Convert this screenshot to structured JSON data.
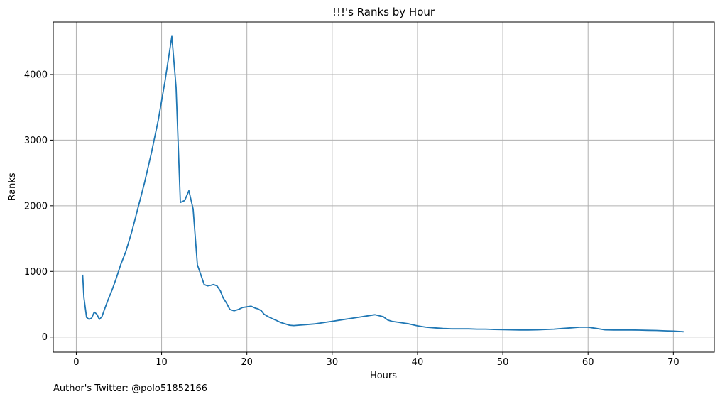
{
  "chart_data": {
    "type": "line",
    "title": "!!!'s Ranks by Hour",
    "xlabel": "Hours",
    "ylabel": "Ranks",
    "footer": "Author's Twitter: @polo51852166",
    "xlim": [
      -2.7,
      74.8
    ],
    "ylim": [
      -230,
      4800
    ],
    "xticks": [
      0,
      10,
      20,
      30,
      40,
      50,
      60,
      70
    ],
    "yticks": [
      0,
      1000,
      2000,
      3000,
      4000
    ],
    "grid": true,
    "line_color": "#1f77b4",
    "series": [
      {
        "x": [
          0.75,
          0.9,
          1.2,
          1.5,
          1.8,
          2.1,
          2.4,
          2.7,
          3.0,
          3.3,
          3.7,
          4.2,
          4.7,
          5.2,
          5.8,
          6.5,
          7.2,
          8.0,
          8.8,
          9.6,
          10.4,
          11.2,
          11.7,
          12.2,
          12.7,
          13.2,
          13.7,
          14.2,
          14.6,
          15.0,
          15.4,
          15.8,
          16.1,
          16.5,
          16.9,
          17.2,
          17.6,
          18.0,
          18.5,
          19.0,
          19.5,
          20.0,
          20.5,
          21.0,
          21.3,
          21.7,
          22.0,
          22.5,
          23.0,
          23.5,
          24.0,
          24.5,
          25.0,
          25.5,
          26.0,
          27.0,
          28.0,
          29.0,
          30.0,
          31.0,
          32.0,
          33.0,
          34.0,
          34.5,
          35.0,
          36.0,
          36.5,
          37.0,
          38.0,
          39.0,
          40.0,
          41.0,
          42.0,
          43.0,
          44.0,
          45.0,
          46.0,
          47.0,
          48.0,
          49.0,
          50.0,
          51.0,
          52.0,
          53.0,
          54.0,
          55.0,
          56.0,
          57.0,
          58.0,
          59.0,
          60.0,
          61.0,
          62.0,
          63.0,
          64.0,
          65.0,
          66.0,
          67.0,
          68.0,
          69.0,
          70.0,
          71.2
        ],
        "y": [
          950,
          600,
          300,
          270,
          290,
          380,
          350,
          270,
          310,
          420,
          560,
          720,
          900,
          1100,
          1300,
          1600,
          1950,
          2350,
          2800,
          3300,
          3900,
          4580,
          3800,
          2050,
          2080,
          2230,
          1950,
          1100,
          950,
          800,
          780,
          790,
          800,
          780,
          700,
          600,
          520,
          420,
          400,
          420,
          450,
          460,
          470,
          440,
          430,
          400,
          350,
          310,
          280,
          250,
          220,
          200,
          180,
          175,
          180,
          190,
          200,
          220,
          240,
          260,
          280,
          300,
          320,
          330,
          340,
          310,
          260,
          240,
          220,
          200,
          170,
          150,
          140,
          130,
          125,
          125,
          125,
          120,
          120,
          115,
          112,
          110,
          108,
          108,
          110,
          115,
          120,
          130,
          140,
          150,
          150,
          130,
          110,
          108,
          108,
          107,
          105,
          102,
          100,
          95,
          90,
          80
        ]
      }
    ]
  }
}
